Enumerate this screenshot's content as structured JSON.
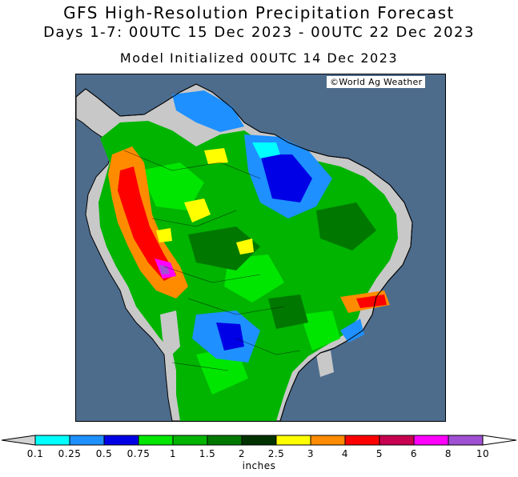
{
  "header": {
    "title": "GFS High-Resolution Precipitation Forecast",
    "subtitle": "Days 1-7: 00UTC 15 Dec 2023 - 00UTC 22 Dec 2023",
    "init": "Model Initialized 00UTC 14 Dec 2023"
  },
  "map": {
    "credit": "©World Ag Weather",
    "ocean_color": "#4d6c8c",
    "land_dry_color": "#c8c8c8"
  },
  "legend": {
    "unit": "inches",
    "ticks": [
      "0.1",
      "0.25",
      "0.5",
      "0.75",
      "1",
      "1.5",
      "2",
      "2.5",
      "3",
      "4",
      "5",
      "6",
      "8",
      "10"
    ],
    "colors": [
      "#00ffff",
      "#1e90ff",
      "#0000e6",
      "#00e600",
      "#00b400",
      "#007800",
      "#003200",
      "#ffff00",
      "#ff8c00",
      "#ff0000",
      "#c80050",
      "#ff00ff",
      "#a050d2"
    ],
    "below_color": "#d2d2d2",
    "above_color": "#ffffff"
  }
}
